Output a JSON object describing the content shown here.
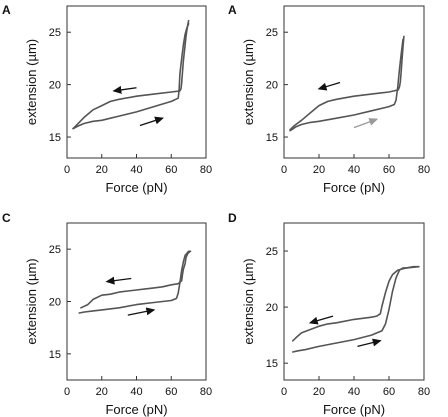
{
  "figure": {
    "panels": [
      "A",
      "A",
      "C",
      "D"
    ]
  },
  "chart_data": [
    {
      "panel": "A",
      "type": "line",
      "xlabel": "Force (pN)",
      "ylabel": "extension (µm)",
      "xlim": [
        0,
        80
      ],
      "ylim": [
        13,
        27.5
      ],
      "xticks": [
        0,
        20,
        40,
        60,
        80
      ],
      "yticks": [
        15,
        20,
        25
      ],
      "series": [
        {
          "x": [
            3.5,
            7,
            10,
            15,
            20,
            25,
            30,
            40,
            50,
            60,
            64,
            64.5,
            65,
            66,
            67,
            68,
            69,
            70
          ],
          "y": [
            15.8,
            16.1,
            16.3,
            16.5,
            16.6,
            16.8,
            17.0,
            17.4,
            17.9,
            18.4,
            18.7,
            19.5,
            21.0,
            22.5,
            23.8,
            24.8,
            25.4,
            25.8
          ]
        },
        {
          "x": [
            70,
            69.2,
            68.5,
            67.8,
            67,
            66.5,
            66,
            65.6,
            65,
            60,
            50,
            40,
            30,
            25,
            20,
            15,
            10,
            7,
            3.5
          ],
          "y": [
            26.1,
            25.4,
            24.6,
            23.5,
            22.3,
            21.2,
            20.2,
            19.6,
            19.4,
            19.3,
            19.1,
            18.9,
            18.6,
            18.4,
            18.0,
            17.6,
            16.9,
            16.4,
            15.8
          ]
        }
      ],
      "arrows": [
        {
          "from": [
            40,
            19.7
          ],
          "to": [
            27,
            19.4
          ],
          "color": "#111111"
        },
        {
          "from": [
            42,
            16.1
          ],
          "to": [
            55,
            16.8
          ],
          "color": "#111111"
        }
      ]
    },
    {
      "panel": "A",
      "type": "line",
      "xlabel": "Force (pN)",
      "ylabel": "extension (µm)",
      "xlim": [
        0,
        80
      ],
      "ylim": [
        13,
        27.5
      ],
      "xticks": [
        0,
        20,
        40,
        60,
        80
      ],
      "yticks": [
        15,
        20,
        25
      ],
      "series": [
        {
          "x": [
            3.5,
            7,
            10,
            15,
            20,
            30,
            40,
            50,
            60,
            63,
            64,
            65,
            66,
            67,
            68
          ],
          "y": [
            15.6,
            16.0,
            16.2,
            16.4,
            16.5,
            16.8,
            17.1,
            17.5,
            17.9,
            18.1,
            18.5,
            19.8,
            21.5,
            23.0,
            24.3
          ]
        },
        {
          "x": [
            68.5,
            68,
            67.5,
            67,
            66.5,
            66,
            65.3,
            60,
            50,
            40,
            30,
            25,
            20,
            15,
            10,
            6,
            3.5
          ],
          "y": [
            24.6,
            23.6,
            22.5,
            21.4,
            20.3,
            19.8,
            19.5,
            19.3,
            19.1,
            18.9,
            18.6,
            18.4,
            18.0,
            17.3,
            16.6,
            16.1,
            15.7
          ]
        }
      ],
      "arrows": [
        {
          "from": [
            32,
            20.2
          ],
          "to": [
            20,
            19.6
          ],
          "color": "#111111"
        },
        {
          "from": [
            40,
            15.9
          ],
          "to": [
            53,
            16.7
          ],
          "color": "#999999"
        }
      ]
    },
    {
      "panel": "C",
      "type": "line",
      "xlabel": "Force (pN)",
      "ylabel": "extension (µm)",
      "xlim": [
        0,
        80
      ],
      "ylim": [
        12.5,
        27.5
      ],
      "xticks": [
        0,
        20,
        40,
        60,
        80
      ],
      "yticks": [
        15,
        20,
        25
      ],
      "series": [
        {
          "x": [
            7,
            10,
            15,
            20,
            30,
            40,
            50,
            60,
            63,
            64,
            65,
            66,
            67,
            68,
            70,
            71
          ],
          "y": [
            18.9,
            19.0,
            19.1,
            19.2,
            19.4,
            19.7,
            19.9,
            20.1,
            20.3,
            20.8,
            21.8,
            23.0,
            23.8,
            24.4,
            24.8,
            24.8
          ]
        },
        {
          "x": [
            71,
            69.5,
            68.5,
            68,
            67,
            66.5,
            66,
            64,
            60,
            55,
            50,
            45,
            40,
            35,
            30,
            25,
            20,
            15,
            12,
            8
          ],
          "y": [
            24.8,
            24.6,
            24.2,
            23.6,
            23.1,
            22.6,
            22.0,
            21.7,
            21.6,
            21.4,
            21.3,
            21.2,
            21.1,
            21.0,
            20.9,
            20.7,
            20.6,
            20.2,
            19.7,
            19.4
          ]
        }
      ],
      "arrows": [
        {
          "from": [
            37,
            22.2
          ],
          "to": [
            23,
            21.9
          ],
          "color": "#111111"
        },
        {
          "from": [
            35,
            18.7
          ],
          "to": [
            50,
            19.2
          ],
          "color": "#111111"
        }
      ]
    },
    {
      "panel": "D",
      "type": "line",
      "xlabel": "Force (pN)",
      "ylabel": "extension (µm)",
      "xlim": [
        0,
        80
      ],
      "ylim": [
        13.5,
        27.5
      ],
      "xticks": [
        0,
        20,
        40,
        60,
        80
      ],
      "yticks": [
        15,
        20,
        25
      ],
      "series": [
        {
          "x": [
            5,
            8,
            12,
            20,
            30,
            40,
            50,
            56,
            58,
            60,
            62,
            64,
            66,
            68,
            70,
            74,
            77
          ],
          "y": [
            16.0,
            16.1,
            16.2,
            16.5,
            16.8,
            17.1,
            17.5,
            17.9,
            18.5,
            19.8,
            21.4,
            22.6,
            23.3,
            23.5,
            23.5,
            23.6,
            23.6
          ]
        },
        {
          "x": [
            77,
            70,
            65,
            62,
            60,
            58,
            56,
            55,
            53,
            50,
            45,
            40,
            30,
            25,
            20,
            15,
            10,
            7,
            5
          ],
          "y": [
            23.6,
            23.5,
            23.3,
            22.9,
            22.3,
            21.3,
            20.1,
            19.4,
            19.2,
            19.1,
            19.0,
            18.9,
            18.6,
            18.5,
            18.3,
            18.0,
            17.7,
            17.3,
            17.0
          ]
        }
      ],
      "arrows": [
        {
          "from": [
            28,
            19.2
          ],
          "to": [
            15,
            18.6
          ],
          "color": "#111111"
        },
        {
          "from": [
            42,
            16.5
          ],
          "to": [
            55,
            17.0
          ],
          "color": "#111111"
        }
      ]
    }
  ]
}
